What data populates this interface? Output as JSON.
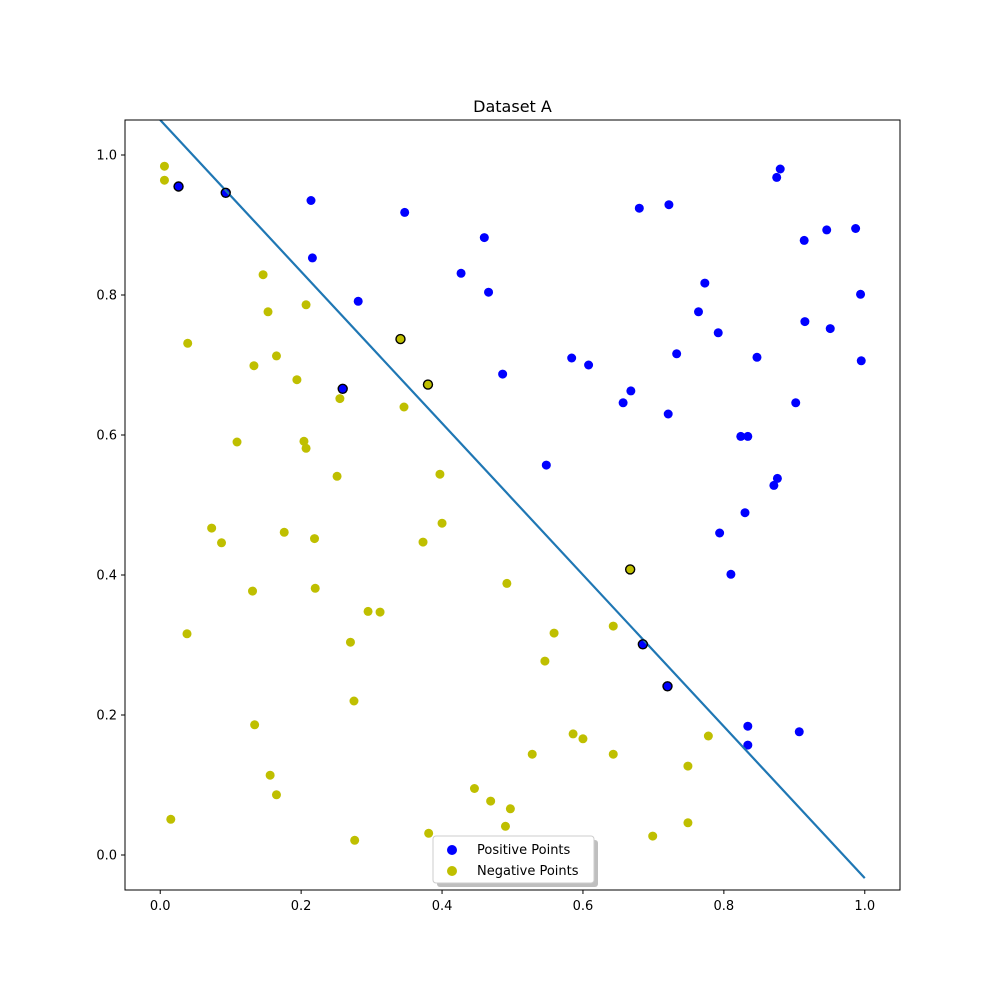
{
  "chart_data": {
    "type": "scatter",
    "title": "Dataset A",
    "xlabel": "",
    "ylabel": "",
    "xlim": [
      -0.05,
      1.05
    ],
    "ylim": [
      -0.05,
      1.05
    ],
    "xticks": [
      0.0,
      0.2,
      0.4,
      0.6,
      0.8,
      1.0
    ],
    "yticks": [
      0.0,
      0.2,
      0.4,
      0.6,
      0.8,
      1.0
    ],
    "tick_labels_x": [
      "0.0",
      "0.2",
      "0.4",
      "0.6",
      "0.8",
      "1.0"
    ],
    "tick_labels_y": [
      "0.0",
      "0.2",
      "0.4",
      "0.6",
      "0.8",
      "1.0"
    ],
    "grid": false,
    "legend_position": "bottom-center",
    "series": [
      {
        "name": "Positive Points",
        "color": "#0000ff",
        "points": [
          [
            0.026,
            0.955
          ],
          [
            0.093,
            0.946
          ],
          [
            0.214,
            0.935
          ],
          [
            0.347,
            0.918
          ],
          [
            0.216,
            0.853
          ],
          [
            0.281,
            0.791
          ],
          [
            0.259,
            0.666
          ],
          [
            0.46,
            0.882
          ],
          [
            0.427,
            0.831
          ],
          [
            0.466,
            0.804
          ],
          [
            0.486,
            0.687
          ],
          [
            0.584,
            0.71
          ],
          [
            0.608,
            0.7
          ],
          [
            0.548,
            0.557
          ],
          [
            0.68,
            0.924
          ],
          [
            0.722,
            0.929
          ],
          [
            0.773,
            0.817
          ],
          [
            0.764,
            0.776
          ],
          [
            0.792,
            0.746
          ],
          [
            0.733,
            0.716
          ],
          [
            0.847,
            0.711
          ],
          [
            0.668,
            0.663
          ],
          [
            0.657,
            0.646
          ],
          [
            0.721,
            0.63
          ],
          [
            0.88,
            0.98
          ],
          [
            0.875,
            0.968
          ],
          [
            0.914,
            0.878
          ],
          [
            0.946,
            0.893
          ],
          [
            0.987,
            0.895
          ],
          [
            0.994,
            0.801
          ],
          [
            0.915,
            0.762
          ],
          [
            0.951,
            0.752
          ],
          [
            0.995,
            0.706
          ],
          [
            0.902,
            0.646
          ],
          [
            0.824,
            0.598
          ],
          [
            0.834,
            0.598
          ],
          [
            0.876,
            0.538
          ],
          [
            0.871,
            0.528
          ],
          [
            0.83,
            0.489
          ],
          [
            0.794,
            0.46
          ],
          [
            0.81,
            0.401
          ],
          [
            0.685,
            0.301
          ],
          [
            0.72,
            0.241
          ],
          [
            0.834,
            0.184
          ],
          [
            0.834,
            0.157
          ],
          [
            0.907,
            0.176
          ]
        ]
      },
      {
        "name": "Negative Points",
        "color": "#bfbf00",
        "points": [
          [
            0.006,
            0.984
          ],
          [
            0.006,
            0.964
          ],
          [
            0.146,
            0.829
          ],
          [
            0.207,
            0.786
          ],
          [
            0.153,
            0.776
          ],
          [
            0.039,
            0.731
          ],
          [
            0.165,
            0.713
          ],
          [
            0.133,
            0.699
          ],
          [
            0.194,
            0.679
          ],
          [
            0.341,
            0.737
          ],
          [
            0.38,
            0.672
          ],
          [
            0.255,
            0.652
          ],
          [
            0.346,
            0.64
          ],
          [
            0.109,
            0.59
          ],
          [
            0.204,
            0.591
          ],
          [
            0.207,
            0.581
          ],
          [
            0.251,
            0.541
          ],
          [
            0.397,
            0.544
          ],
          [
            0.073,
            0.467
          ],
          [
            0.087,
            0.446
          ],
          [
            0.176,
            0.461
          ],
          [
            0.219,
            0.452
          ],
          [
            0.373,
            0.447
          ],
          [
            0.4,
            0.474
          ],
          [
            0.131,
            0.377
          ],
          [
            0.22,
            0.381
          ],
          [
            0.492,
            0.388
          ],
          [
            0.295,
            0.348
          ],
          [
            0.312,
            0.347
          ],
          [
            0.038,
            0.316
          ],
          [
            0.27,
            0.304
          ],
          [
            0.559,
            0.317
          ],
          [
            0.546,
            0.277
          ],
          [
            0.667,
            0.408
          ],
          [
            0.643,
            0.327
          ],
          [
            0.275,
            0.22
          ],
          [
            0.134,
            0.186
          ],
          [
            0.586,
            0.173
          ],
          [
            0.6,
            0.166
          ],
          [
            0.528,
            0.144
          ],
          [
            0.643,
            0.144
          ],
          [
            0.778,
            0.17
          ],
          [
            0.749,
            0.127
          ],
          [
            0.156,
            0.114
          ],
          [
            0.165,
            0.086
          ],
          [
            0.446,
            0.095
          ],
          [
            0.469,
            0.077
          ],
          [
            0.497,
            0.066
          ],
          [
            0.49,
            0.041
          ],
          [
            0.749,
            0.046
          ],
          [
            0.699,
            0.027
          ],
          [
            0.015,
            0.051
          ],
          [
            0.381,
            0.031
          ],
          [
            0.276,
            0.021
          ]
        ]
      }
    ],
    "outlined_points": [
      [
        0.026,
        0.955
      ],
      [
        0.093,
        0.946
      ],
      [
        0.259,
        0.666
      ],
      [
        0.341,
        0.737
      ],
      [
        0.38,
        0.672
      ],
      [
        0.667,
        0.408
      ],
      [
        0.685,
        0.301
      ],
      [
        0.72,
        0.241
      ]
    ],
    "decision_line": {
      "x": [
        0.0,
        1.0
      ],
      "y": [
        1.05,
        -0.033
      ],
      "color": "#1f77b4"
    }
  }
}
